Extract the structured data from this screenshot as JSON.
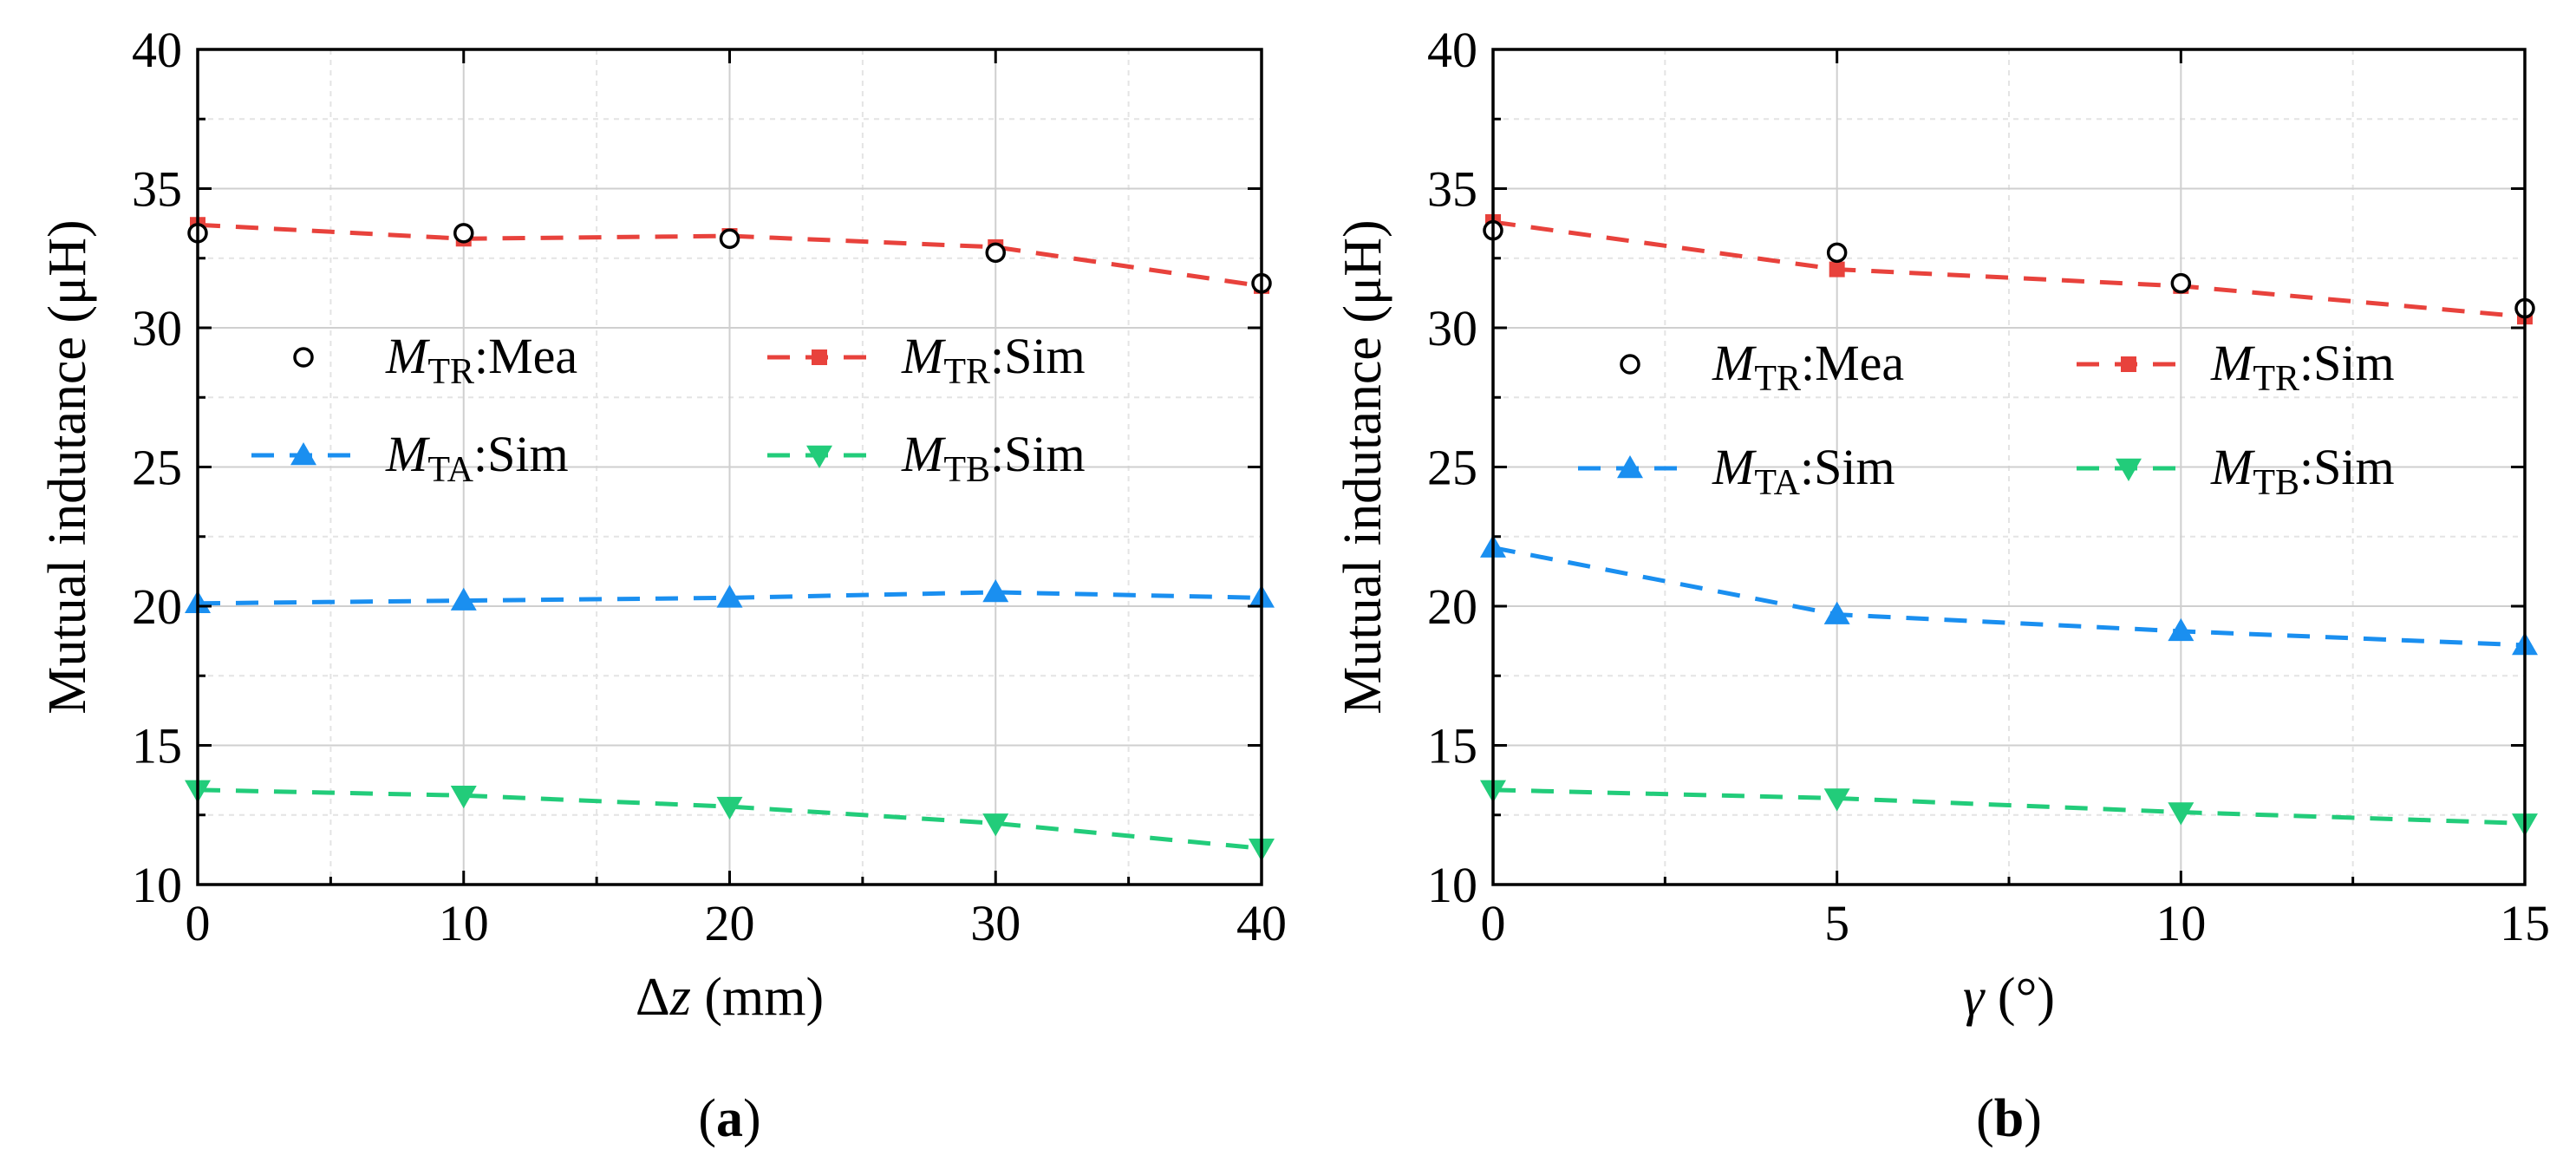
{
  "colors": {
    "TR": "#e8423c",
    "TA": "#1a8ff0",
    "TB": "#22cc7a",
    "mea": "#000000",
    "grid": "#cfcfcf"
  },
  "chart_data": [
    {
      "type": "line",
      "panel_label": "a",
      "xlabel": {
        "prefix": "Δ",
        "var": "z",
        "unit": " (mm)"
      },
      "ylabel": "Mutual indutance (μH)",
      "xlim": [
        0,
        40
      ],
      "ylim": [
        10,
        40
      ],
      "xticks": [
        0,
        10,
        20,
        30,
        40
      ],
      "yticks": [
        10,
        15,
        20,
        25,
        30,
        35,
        40
      ],
      "x": [
        0,
        10,
        20,
        30,
        40
      ],
      "series": [
        {
          "key": "TR_Mea",
          "sym": "M",
          "sub": "TR",
          "suffix": ":Mea",
          "kind": "mea",
          "values": [
            33.4,
            33.4,
            33.2,
            32.7,
            31.6
          ]
        },
        {
          "key": "TR",
          "sym": "M",
          "sub": "TR",
          "suffix": ":Sim",
          "kind": "square",
          "values": [
            33.7,
            33.2,
            33.3,
            32.9,
            31.5
          ]
        },
        {
          "key": "TA",
          "sym": "M",
          "sub": "TA",
          "suffix": ":Sim",
          "kind": "up",
          "values": [
            20.1,
            20.2,
            20.3,
            20.5,
            20.3
          ]
        },
        {
          "key": "TB",
          "sym": "M",
          "sub": "TB",
          "suffix": ":Sim",
          "kind": "down",
          "values": [
            13.4,
            13.2,
            12.8,
            12.2,
            11.3
          ]
        }
      ]
    },
    {
      "type": "line",
      "panel_label": "b",
      "xlabel": {
        "prefix": "",
        "var": "γ",
        "unit": " (°)"
      },
      "ylabel": "Mutual indutance (μH)",
      "xlim": [
        0,
        15
      ],
      "ylim": [
        10,
        40
      ],
      "xticks": [
        0,
        5,
        10,
        15
      ],
      "yticks": [
        10,
        15,
        20,
        25,
        30,
        35,
        40
      ],
      "x": [
        0,
        5,
        10,
        15
      ],
      "series": [
        {
          "key": "TR_Mea",
          "sym": "M",
          "sub": "TR",
          "suffix": ":Mea",
          "kind": "mea",
          "values": [
            33.5,
            32.7,
            31.6,
            30.7
          ]
        },
        {
          "key": "TR",
          "sym": "M",
          "sub": "TR",
          "suffix": ":Sim",
          "kind": "square",
          "values": [
            33.8,
            32.1,
            31.5,
            30.4
          ]
        },
        {
          "key": "TA",
          "sym": "M",
          "sub": "TA",
          "suffix": ":Sim",
          "kind": "up",
          "values": [
            22.1,
            19.7,
            19.1,
            18.6
          ]
        },
        {
          "key": "TB",
          "sym": "M",
          "sub": "TB",
          "suffix": ":Sim",
          "kind": "down",
          "values": [
            13.4,
            13.1,
            12.6,
            12.2
          ]
        }
      ]
    }
  ]
}
